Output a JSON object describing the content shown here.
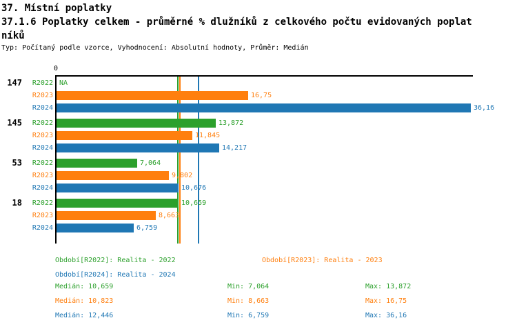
{
  "title_line1": "37. Místní poplatky",
  "title_line2": "37.1.6 Poplatky celkem - průměrné % dlužníků z celkového počtu evidovaných poplatníků",
  "subtitle": "Typ: Počítaný podle vzorce, Vyhodnocení: Absolutní hodnoty, Průměr: Medián",
  "colors": {
    "r2022": "#2ca02c",
    "r2023": "#ff7f0e",
    "r2024": "#1f77b4",
    "axis": "#000000",
    "background": "#ffffff"
  },
  "chart_data": {
    "type": "bar",
    "orientation": "horizontal",
    "axis_tick_label": "0",
    "xlim": [
      0,
      36.4
    ],
    "grid": false,
    "categories": [
      "147",
      "145",
      "53",
      "18"
    ],
    "series": [
      {
        "name": "R2022",
        "color": "#2ca02c",
        "values": [
          null,
          13.872,
          7.064,
          10.659
        ],
        "value_labels": [
          "NA",
          "13,872",
          "7,064",
          "10,659"
        ],
        "median": 10.659
      },
      {
        "name": "R2023",
        "color": "#ff7f0e",
        "values": [
          16.75,
          11.845,
          9.802,
          8.663
        ],
        "value_labels": [
          "16,75",
          "11,845",
          "9,802",
          "8,663"
        ],
        "median": 10.823
      },
      {
        "name": "R2024",
        "color": "#1f77b4",
        "values": [
          36.16,
          14.217,
          10.676,
          6.759
        ],
        "value_labels": [
          "36,16",
          "14,217",
          "10,676",
          "6,759"
        ],
        "median": 12.446
      }
    ]
  },
  "legend": {
    "items": [
      {
        "label": "Období[R2022]: Realita - 2022",
        "color": "#2ca02c"
      },
      {
        "label": "Období[R2023]: Realita - 2023",
        "color": "#ff7f0e"
      },
      {
        "label": "Období[R2024]: Realita - 2024",
        "color": "#1f77b4"
      }
    ]
  },
  "stats": {
    "rows": [
      {
        "median": "Medián: 10,659",
        "min": "Min: 7,064",
        "max": "Max: 13,872",
        "color": "#2ca02c"
      },
      {
        "median": "Medián: 10,823",
        "min": "Min: 8,663",
        "max": "Max: 16,75",
        "color": "#ff7f0e"
      },
      {
        "median": "Medián: 12,446",
        "min": "Min: 6,759",
        "max": "Max: 36,16",
        "color": "#1f77b4"
      }
    ]
  }
}
